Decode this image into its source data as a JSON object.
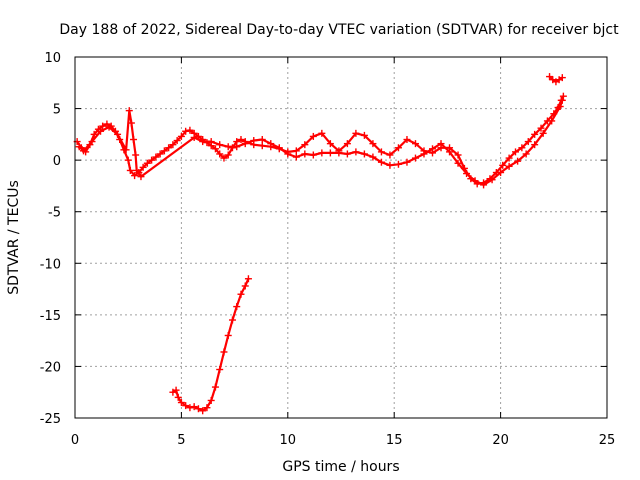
{
  "chart_data": {
    "type": "scatter",
    "title": "Day 188 of 2022, Sidereal Day-to-day VTEC variation (SDTVAR) for receiver bjct",
    "xlabel": "GPS time / hours",
    "ylabel": "SDTVAR / TECUs",
    "xlim": [
      0,
      25
    ],
    "ylim": [
      -25,
      10
    ],
    "xticks": [
      0,
      5,
      10,
      15,
      20,
      25
    ],
    "yticks": [
      -25,
      -20,
      -15,
      -10,
      -5,
      0,
      5,
      10
    ],
    "grid": true,
    "marker": "+",
    "series": [
      {
        "name": "SDTVAR track A",
        "color": "#ff0000",
        "points": [
          [
            0.1,
            1.8
          ],
          [
            0.3,
            1.2
          ],
          [
            0.5,
            0.8
          ],
          [
            0.7,
            1.5
          ],
          [
            0.9,
            2.5
          ],
          [
            1.1,
            3.0
          ],
          [
            1.3,
            3.3
          ],
          [
            1.5,
            3.5
          ],
          [
            1.7,
            3.3
          ],
          [
            1.9,
            2.8
          ],
          [
            2.1,
            2.0
          ],
          [
            2.3,
            1.0
          ],
          [
            2.5,
            0.0
          ],
          [
            2.6,
            -1.0
          ],
          [
            2.8,
            -1.5
          ],
          [
            3.0,
            -1.2
          ],
          [
            3.2,
            -0.7
          ],
          [
            3.4,
            -0.3
          ],
          [
            3.6,
            0.0
          ],
          [
            3.8,
            0.3
          ],
          [
            4.0,
            0.6
          ],
          [
            4.2,
            0.9
          ],
          [
            4.4,
            1.2
          ],
          [
            4.6,
            1.5
          ],
          [
            4.8,
            1.9
          ],
          [
            5.0,
            2.3
          ],
          [
            5.2,
            2.8
          ],
          [
            5.4,
            2.9
          ],
          [
            5.6,
            2.6
          ],
          [
            5.8,
            2.3
          ],
          [
            6.0,
            2.0
          ],
          [
            6.2,
            1.7
          ],
          [
            6.4,
            1.4
          ],
          [
            6.6,
            1.1
          ],
          [
            6.8,
            0.6
          ],
          [
            7.0,
            0.2
          ],
          [
            7.2,
            0.5
          ],
          [
            7.4,
            1.2
          ],
          [
            7.6,
            1.8
          ],
          [
            7.8,
            2.0
          ],
          [
            8.0,
            1.8
          ],
          [
            8.4,
            1.5
          ],
          [
            8.8,
            1.4
          ],
          [
            9.2,
            1.3
          ],
          [
            9.6,
            1.1
          ],
          [
            10.0,
            0.8
          ],
          [
            10.4,
            0.9
          ],
          [
            10.8,
            1.5
          ],
          [
            11.2,
            2.3
          ],
          [
            11.6,
            2.6
          ],
          [
            12.0,
            1.6
          ],
          [
            12.4,
            0.9
          ],
          [
            12.8,
            1.6
          ],
          [
            13.2,
            2.6
          ],
          [
            13.6,
            2.4
          ],
          [
            14.0,
            1.6
          ],
          [
            14.4,
            0.8
          ],
          [
            14.8,
            0.5
          ],
          [
            15.2,
            1.2
          ],
          [
            15.6,
            2.0
          ],
          [
            16.0,
            1.6
          ],
          [
            16.4,
            0.9
          ],
          [
            16.8,
            0.7
          ],
          [
            17.2,
            1.2
          ],
          [
            17.6,
            1.2
          ],
          [
            18.0,
            0.5
          ],
          [
            18.3,
            -0.8
          ],
          [
            18.6,
            -1.8
          ],
          [
            18.9,
            -2.3
          ],
          [
            19.2,
            -2.2
          ],
          [
            19.5,
            -1.8
          ],
          [
            19.8,
            -1.2
          ],
          [
            20.1,
            -0.5
          ],
          [
            20.4,
            0.2
          ],
          [
            20.7,
            0.8
          ],
          [
            21.0,
            1.2
          ],
          [
            21.3,
            1.8
          ],
          [
            21.6,
            2.5
          ],
          [
            21.9,
            3.1
          ],
          [
            22.2,
            3.8
          ],
          [
            22.5,
            4.5
          ],
          [
            22.7,
            5.1
          ],
          [
            22.85,
            5.8
          ],
          [
            22.95,
            6.2
          ]
        ]
      },
      {
        "name": "SDTVAR track B",
        "color": "#ff0000",
        "points": [
          [
            0.2,
            1.3
          ],
          [
            0.4,
            0.9
          ],
          [
            0.8,
            1.8
          ],
          [
            1.2,
            2.8
          ],
          [
            1.6,
            3.2
          ],
          [
            2.0,
            2.5
          ],
          [
            2.4,
            1.0
          ],
          [
            2.55,
            4.8
          ],
          [
            2.65,
            3.6
          ],
          [
            2.75,
            2.0
          ],
          [
            2.85,
            0.5
          ],
          [
            2.9,
            -1.0
          ],
          [
            3.1,
            -1.6
          ],
          [
            5.6,
            2.2
          ],
          [
            6.0,
            1.8
          ],
          [
            6.4,
            1.8
          ],
          [
            6.8,
            1.5
          ],
          [
            7.2,
            1.3
          ],
          [
            7.6,
            1.3
          ],
          [
            8.0,
            1.6
          ],
          [
            8.4,
            1.9
          ],
          [
            8.8,
            2.0
          ],
          [
            9.2,
            1.6
          ],
          [
            9.6,
            1.2
          ],
          [
            10.0,
            0.6
          ],
          [
            10.4,
            0.3
          ],
          [
            10.8,
            0.6
          ],
          [
            11.2,
            0.5
          ],
          [
            11.6,
            0.7
          ],
          [
            12.0,
            0.7
          ],
          [
            12.4,
            0.7
          ],
          [
            12.8,
            0.6
          ],
          [
            13.2,
            0.8
          ],
          [
            13.6,
            0.6
          ],
          [
            14.0,
            0.3
          ],
          [
            14.4,
            -0.2
          ],
          [
            14.8,
            -0.5
          ],
          [
            15.2,
            -0.4
          ],
          [
            15.6,
            -0.2
          ],
          [
            16.0,
            0.2
          ],
          [
            16.4,
            0.6
          ],
          [
            16.8,
            1.1
          ],
          [
            17.2,
            1.6
          ],
          [
            17.6,
            0.8
          ],
          [
            18.0,
            -0.3
          ],
          [
            18.4,
            -1.3
          ],
          [
            18.8,
            -2.0
          ],
          [
            19.2,
            -2.4
          ],
          [
            19.6,
            -1.9
          ],
          [
            20.0,
            -1.2
          ],
          [
            20.4,
            -0.6
          ],
          [
            20.8,
            -0.1
          ],
          [
            21.2,
            0.6
          ],
          [
            21.6,
            1.5
          ],
          [
            22.0,
            2.6
          ],
          [
            22.4,
            3.8
          ],
          [
            22.8,
            5.2
          ],
          [
            22.9,
            5.8
          ]
        ]
      },
      {
        "name": "SDTVAR cluster late",
        "color": "#ff0000",
        "points": [
          [
            22.3,
            8.1
          ],
          [
            22.45,
            7.8
          ],
          [
            22.6,
            7.6
          ],
          [
            22.75,
            7.8
          ],
          [
            22.9,
            8.0
          ]
        ]
      },
      {
        "name": "SDTVAR deep dip",
        "color": "#ff0000",
        "points": [
          [
            4.6,
            -22.5
          ],
          [
            4.75,
            -22.3
          ],
          [
            4.85,
            -23.0
          ],
          [
            5.0,
            -23.5
          ],
          [
            5.2,
            -23.8
          ],
          [
            5.4,
            -24.0
          ],
          [
            5.6,
            -23.9
          ],
          [
            5.8,
            -24.1
          ],
          [
            6.0,
            -24.3
          ],
          [
            6.2,
            -24.0
          ],
          [
            6.4,
            -23.3
          ],
          [
            6.6,
            -22.0
          ],
          [
            6.8,
            -20.3
          ],
          [
            7.0,
            -18.6
          ],
          [
            7.2,
            -17.0
          ],
          [
            7.4,
            -15.5
          ],
          [
            7.6,
            -14.2
          ],
          [
            7.8,
            -13.0
          ],
          [
            8.0,
            -12.2
          ],
          [
            8.15,
            -11.5
          ]
        ]
      }
    ]
  }
}
